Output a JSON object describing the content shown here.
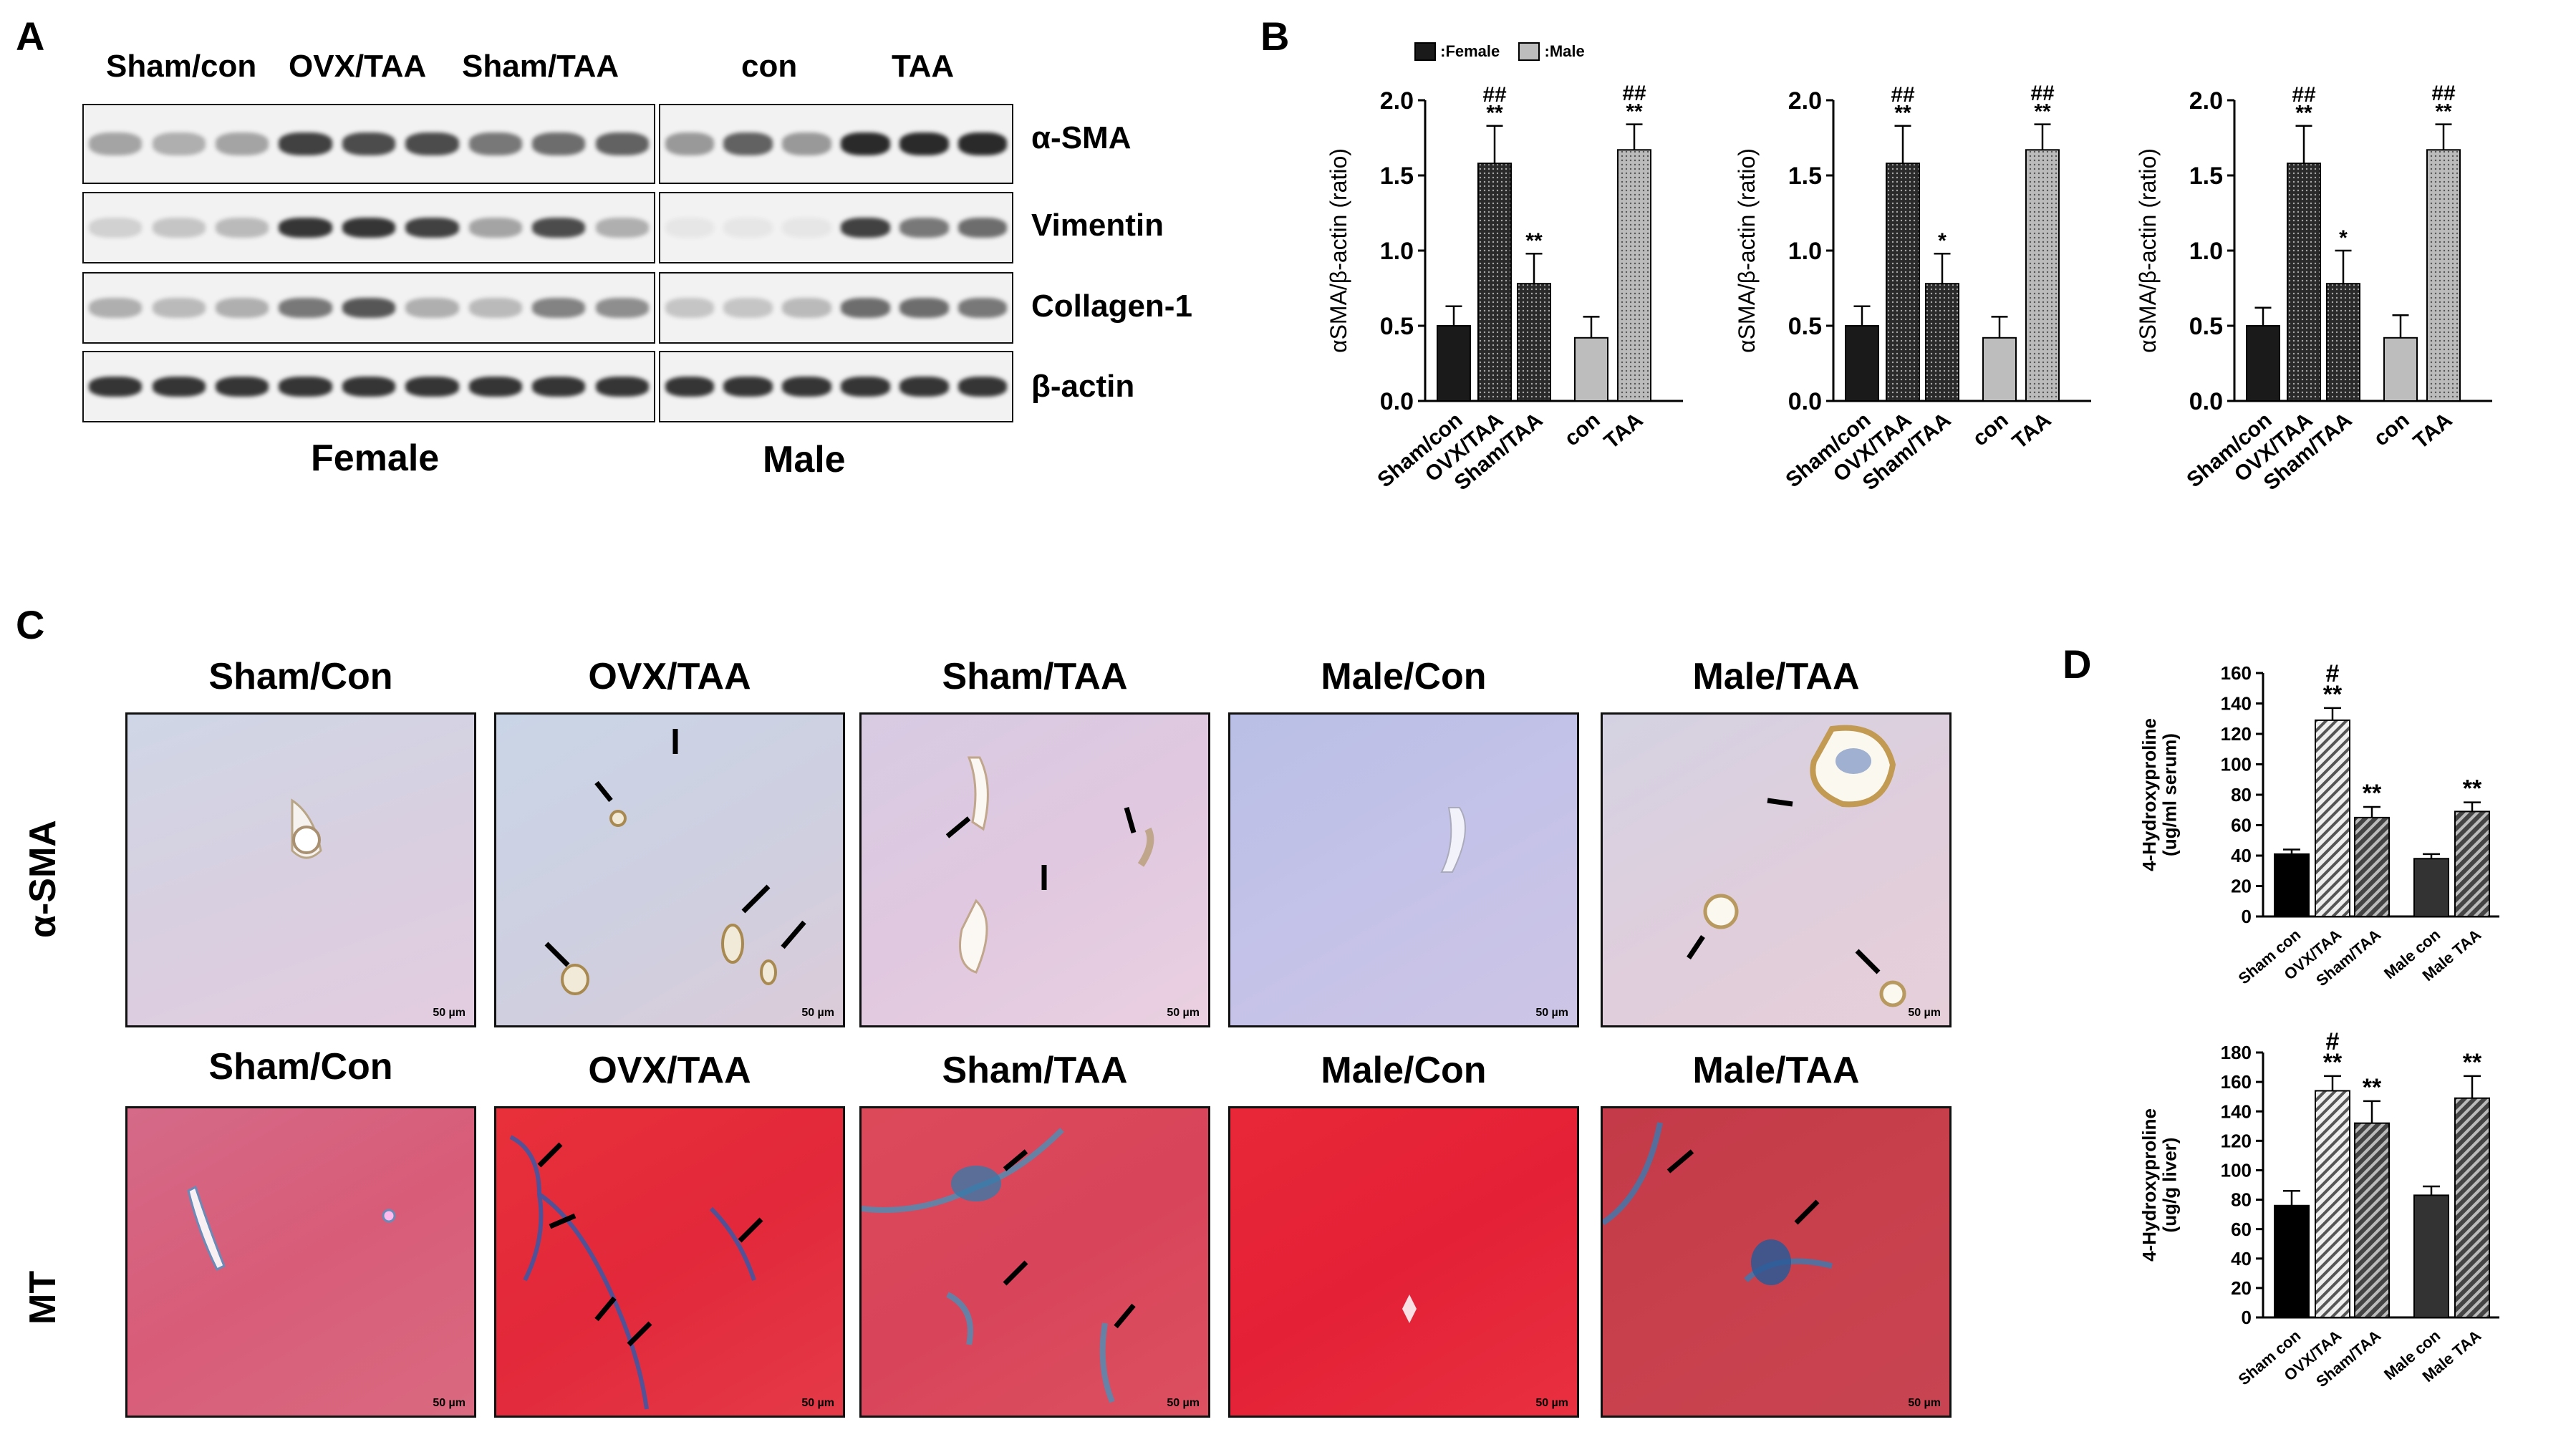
{
  "figure": {
    "panel_labels": [
      "A",
      "B",
      "C",
      "D"
    ]
  },
  "panel_a": {
    "female_lanes": [
      "Sham/con",
      "OVX/TAA",
      "Sham/TAA"
    ],
    "male_lanes": [
      "con",
      "TAA"
    ],
    "bands": [
      "α-SMA",
      "Vimentin",
      "Collagen-1",
      "β-actin"
    ],
    "group_labels": [
      "Female",
      "Male"
    ]
  },
  "panel_b": {
    "legend": [
      {
        "label": ":Female",
        "color": "#1a1a1a"
      },
      {
        "label": ":Male",
        "color": "#bdbdbd"
      }
    ]
  },
  "panel_c": {
    "columns": [
      "Sham/Con",
      "OVX/TAA",
      "Sham/TAA",
      "Male/Con",
      "Male/TAA"
    ],
    "columns_row2": [
      "Sham/Con",
      "OVX/TAA",
      "Sham/TAA",
      "Male/Con",
      "Male/TAA"
    ],
    "rows": [
      "α-SMA",
      "MT"
    ],
    "scale_bar": "50 µm"
  },
  "chart_data": [
    {
      "type": "bar",
      "panel": "B1",
      "categories": [
        "Sham/con",
        "OVX/TAA",
        "Sham/TAA",
        "con",
        "TAA"
      ],
      "values": [
        0.5,
        1.58,
        0.78,
        0.42,
        1.67
      ],
      "errors": [
        0.13,
        0.25,
        0.2,
        0.14,
        0.17
      ],
      "annotations": [
        "",
        "##|**",
        "**",
        "",
        "##|**"
      ],
      "ylabel": "αSMA/β-actin (ratio)",
      "ylim": [
        0,
        2.0
      ],
      "yticks": [
        "0.0",
        "0.5",
        "1.0",
        "1.5",
        "2.0"
      ]
    },
    {
      "type": "bar",
      "panel": "B2",
      "categories": [
        "Sham/con",
        "OVX/TAA",
        "Sham/TAA",
        "con",
        "TAA"
      ],
      "values": [
        0.5,
        1.58,
        0.78,
        0.42,
        1.67
      ],
      "errors": [
        0.13,
        0.25,
        0.2,
        0.14,
        0.17
      ],
      "annotations": [
        "",
        "##|**",
        "*",
        "",
        "##|**"
      ],
      "ylabel": "αSMA/β-actin (ratio)",
      "ylim": [
        0,
        2.0
      ],
      "yticks": [
        "0.0",
        "0.5",
        "1.0",
        "1.5",
        "2.0"
      ]
    },
    {
      "type": "bar",
      "panel": "B3",
      "categories": [
        "Sham/con",
        "OVX/TAA",
        "Sham/TAA",
        "con",
        "TAA"
      ],
      "values": [
        0.5,
        1.58,
        0.78,
        0.42,
        1.67
      ],
      "errors": [
        0.12,
        0.25,
        0.22,
        0.15,
        0.17
      ],
      "annotations": [
        "",
        "##|**",
        "*",
        "",
        "##|**"
      ],
      "ylabel": "αSMA/β-actin (ratio)",
      "ylim": [
        0,
        2.0
      ],
      "yticks": [
        "0.0",
        "0.5",
        "1.0",
        "1.5",
        "2.0"
      ]
    },
    {
      "type": "bar",
      "panel": "D1",
      "categories": [
        "Sham con",
        "OVX/TAA",
        "Sham/TAA",
        "Male con",
        "Male TAA"
      ],
      "values": [
        41,
        129,
        65,
        38,
        69
      ],
      "errors": [
        3,
        8,
        7,
        3,
        6
      ],
      "annotations": [
        "",
        "#|**",
        "**",
        "",
        "**"
      ],
      "ylabel": "4-Hydroxyproline (ug/ml serum)",
      "ylim": [
        0,
        160
      ],
      "yticks": [
        "0",
        "20",
        "40",
        "60",
        "80",
        "100",
        "120",
        "140",
        "160"
      ]
    },
    {
      "type": "bar",
      "panel": "D2",
      "categories": [
        "Sham con",
        "OVX/TAA",
        "Sham/TAA",
        "Male con",
        "Male TAA"
      ],
      "values": [
        76,
        154,
        132,
        83,
        149
      ],
      "errors": [
        10,
        10,
        15,
        6,
        15
      ],
      "annotations": [
        "",
        "#|**",
        "**",
        "",
        "**"
      ],
      "ylabel": "4-Hydroxyproline (ug/g liver)",
      "ylim": [
        0,
        180
      ],
      "yticks": [
        "0",
        "20",
        "40",
        "60",
        "80",
        "100",
        "120",
        "140",
        "160",
        "180"
      ]
    }
  ]
}
